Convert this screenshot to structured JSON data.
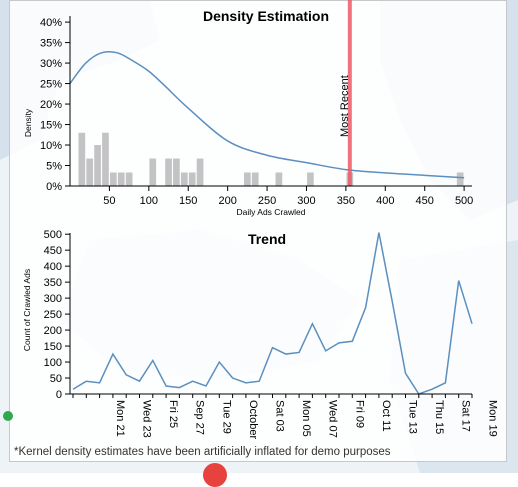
{
  "footnote": "*Kernel density estimates have been artificially inflated for demo purposes",
  "colors": {
    "line": "#5b8fbf",
    "bar": "#c3c3c6",
    "marker": "#ee5a68",
    "axis": "#000000",
    "map_land": "#d5e2ed"
  },
  "chart_data": [
    {
      "type": "bar",
      "title": "Density Estimation",
      "xlabel": "Daily Ads Crawled",
      "ylabel": "Density",
      "xlim": [
        0,
        510
      ],
      "ylim": [
        0,
        0.41
      ],
      "x_ticks": [
        50,
        100,
        150,
        200,
        250,
        300,
        350,
        400,
        450,
        500
      ],
      "y_ticks": [
        {
          "value": 0,
          "label": "0%"
        },
        {
          "value": 0.05,
          "label": "5%"
        },
        {
          "value": 0.1,
          "label": "10%"
        },
        {
          "value": 0.15,
          "label": "15%"
        },
        {
          "value": 0.2,
          "label": "20%"
        },
        {
          "value": 0.25,
          "label": "25%"
        },
        {
          "value": 0.3,
          "label": "30%"
        },
        {
          "value": 0.35,
          "label": "35%"
        },
        {
          "value": 0.4,
          "label": "40%"
        }
      ],
      "histogram": [
        {
          "x0": 10,
          "x1": 20,
          "value": 0.13
        },
        {
          "x0": 20,
          "x1": 30,
          "value": 0.067
        },
        {
          "x0": 30,
          "x1": 40,
          "value": 0.1
        },
        {
          "x0": 40,
          "x1": 50,
          "value": 0.13
        },
        {
          "x0": 50,
          "x1": 60,
          "value": 0.033
        },
        {
          "x0": 60,
          "x1": 70,
          "value": 0.033
        },
        {
          "x0": 70,
          "x1": 80,
          "value": 0.033
        },
        {
          "x0": 100,
          "x1": 110,
          "value": 0.067
        },
        {
          "x0": 120,
          "x1": 130,
          "value": 0.067
        },
        {
          "x0": 130,
          "x1": 140,
          "value": 0.067
        },
        {
          "x0": 140,
          "x1": 150,
          "value": 0.033
        },
        {
          "x0": 150,
          "x1": 160,
          "value": 0.033
        },
        {
          "x0": 160,
          "x1": 170,
          "value": 0.067
        },
        {
          "x0": 220,
          "x1": 230,
          "value": 0.033
        },
        {
          "x0": 230,
          "x1": 240,
          "value": 0.033
        },
        {
          "x0": 260,
          "x1": 270,
          "value": 0.033
        },
        {
          "x0": 300,
          "x1": 310,
          "value": 0.033
        },
        {
          "x0": 350,
          "x1": 360,
          "value": 0.033
        },
        {
          "x0": 490,
          "x1": 500,
          "value": 0.033
        }
      ],
      "density_curve": {
        "x": [
          0,
          20,
          40,
          60,
          80,
          100,
          120,
          150,
          200,
          250,
          300,
          350,
          400,
          450,
          500
        ],
        "y": [
          0.25,
          0.3,
          0.325,
          0.325,
          0.305,
          0.28,
          0.245,
          0.19,
          0.11,
          0.075,
          0.057,
          0.04,
          0.032,
          0.026,
          0.02
        ]
      },
      "marker": {
        "x": 355,
        "label": "Most Recent"
      }
    },
    {
      "type": "line",
      "title": "Trend",
      "xlabel": "",
      "ylabel": "Count of Crawled Ads",
      "ylim": [
        0,
        510
      ],
      "y_ticks": [
        0,
        50,
        100,
        150,
        200,
        250,
        300,
        350,
        400,
        450,
        500
      ],
      "x_tick_labels": [
        {
          "label": "Mon 21",
          "index": 3
        },
        {
          "label": "Wed 23",
          "index": 5
        },
        {
          "label": "Fri 25",
          "index": 7
        },
        {
          "label": "Sep 27",
          "index": 9
        },
        {
          "label": "Tue 29",
          "index": 11
        },
        {
          "label": "October",
          "index": 13
        },
        {
          "label": "Sat 03",
          "index": 15
        },
        {
          "label": "Mon 05",
          "index": 17
        },
        {
          "label": "Wed 07",
          "index": 19
        },
        {
          "label": "Fri 09",
          "index": 21
        },
        {
          "label": "Oct 11",
          "index": 23
        },
        {
          "label": "Tue 13",
          "index": 25
        },
        {
          "label": "Thu 15",
          "index": 27
        },
        {
          "label": "Sat 17",
          "index": 29
        },
        {
          "label": "Mon 19",
          "index": 31
        }
      ],
      "series": [
        {
          "values": [
            15,
            40,
            35,
            125,
            60,
            40,
            105,
            25,
            20,
            40,
            25,
            100,
            50,
            35,
            40,
            145,
            125,
            130,
            220,
            135,
            160,
            165,
            270,
            505,
            290,
            65,
            0,
            15,
            35,
            355,
            220
          ]
        }
      ]
    }
  ]
}
